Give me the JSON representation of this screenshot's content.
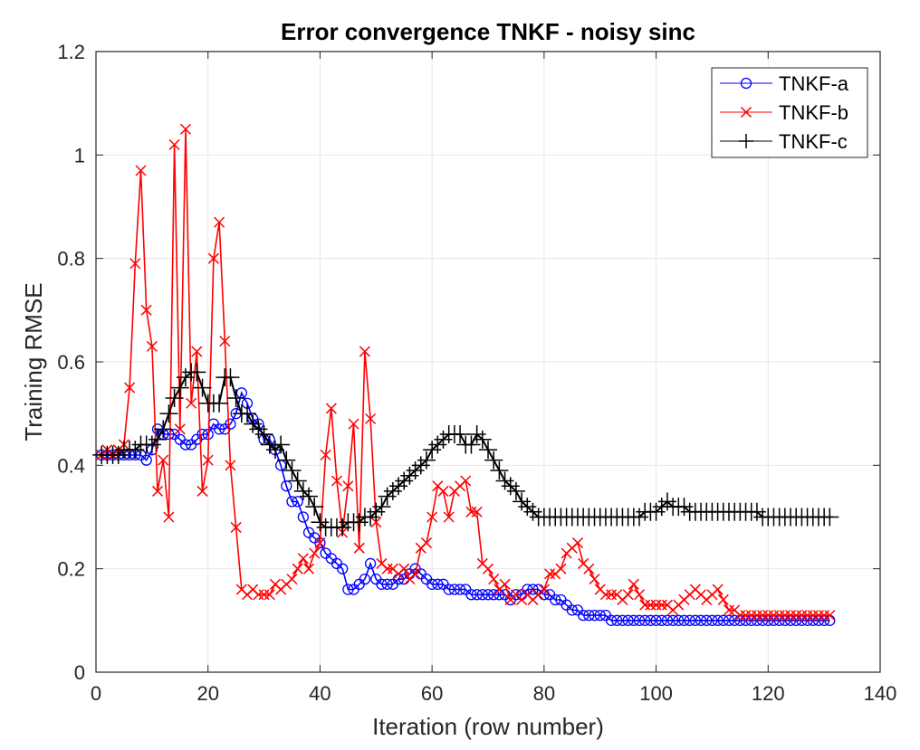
{
  "chart_data": {
    "type": "line",
    "title": "Error convergence TNKF - noisy sinc",
    "xlabel": "Iteration (row number)",
    "ylabel": "Training RMSE",
    "xlim": [
      0,
      140
    ],
    "ylim": [
      0,
      1.2
    ],
    "xticks": [
      0,
      20,
      40,
      60,
      80,
      100,
      120,
      140
    ],
    "yticks": [
      0,
      0.2,
      0.4,
      0.6,
      0.8,
      1,
      1.2
    ],
    "xtick_labels": [
      "0",
      "20",
      "40",
      "60",
      "80",
      "100",
      "120",
      "140"
    ],
    "ytick_labels": [
      "0",
      "0.2",
      "0.4",
      "0.6",
      "0.8",
      "1",
      "1.2"
    ],
    "grid": true,
    "legend": "top-right",
    "x": [
      1,
      2,
      3,
      4,
      5,
      6,
      7,
      8,
      9,
      10,
      11,
      12,
      13,
      14,
      15,
      16,
      17,
      18,
      19,
      20,
      21,
      22,
      23,
      24,
      25,
      26,
      27,
      28,
      29,
      30,
      31,
      32,
      33,
      34,
      35,
      36,
      37,
      38,
      39,
      40,
      41,
      42,
      43,
      44,
      45,
      46,
      47,
      48,
      49,
      50,
      51,
      52,
      53,
      54,
      55,
      56,
      57,
      58,
      59,
      60,
      61,
      62,
      63,
      64,
      65,
      66,
      67,
      68,
      69,
      70,
      71,
      72,
      73,
      74,
      75,
      76,
      77,
      78,
      79,
      80,
      81,
      82,
      83,
      84,
      85,
      86,
      87,
      88,
      89,
      90,
      91,
      92,
      93,
      94,
      95,
      96,
      97,
      98,
      99,
      100,
      101,
      102,
      103,
      104,
      105,
      106,
      107,
      108,
      109,
      110,
      111,
      112,
      113,
      114,
      115,
      116,
      117,
      118,
      119,
      120,
      121,
      122,
      123,
      124,
      125,
      126,
      127,
      128,
      129,
      130,
      131
    ],
    "series": [
      {
        "name": "TNKF-a",
        "color": "#0000ff",
        "marker": "circle",
        "values": [
          0.42,
          0.42,
          0.42,
          0.42,
          0.42,
          0.42,
          0.42,
          0.42,
          0.41,
          0.43,
          0.47,
          0.46,
          0.46,
          0.46,
          0.45,
          0.44,
          0.44,
          0.45,
          0.46,
          0.46,
          0.48,
          0.47,
          0.47,
          0.48,
          0.5,
          0.54,
          0.52,
          0.49,
          0.48,
          0.45,
          0.45,
          0.43,
          0.4,
          0.36,
          0.33,
          0.33,
          0.3,
          0.27,
          0.26,
          0.25,
          0.23,
          0.22,
          0.21,
          0.2,
          0.16,
          0.16,
          0.17,
          0.18,
          0.21,
          0.18,
          0.17,
          0.17,
          0.17,
          0.18,
          0.18,
          0.19,
          0.2,
          0.19,
          0.18,
          0.17,
          0.17,
          0.17,
          0.16,
          0.16,
          0.16,
          0.16,
          0.15,
          0.15,
          0.15,
          0.15,
          0.15,
          0.15,
          0.15,
          0.14,
          0.15,
          0.15,
          0.16,
          0.16,
          0.16,
          0.15,
          0.15,
          0.14,
          0.14,
          0.13,
          0.12,
          0.12,
          0.11,
          0.11,
          0.11,
          0.11,
          0.11,
          0.1,
          0.1,
          0.1,
          0.1,
          0.1,
          0.1,
          0.1,
          0.1,
          0.1,
          0.1,
          0.1,
          0.1,
          0.1,
          0.1,
          0.1,
          0.1,
          0.1,
          0.1,
          0.1,
          0.1,
          0.1,
          0.1,
          0.1,
          0.1,
          0.1,
          0.1,
          0.1,
          0.1,
          0.1,
          0.1,
          0.1,
          0.1,
          0.1,
          0.1,
          0.1,
          0.1,
          0.1,
          0.1,
          0.1,
          0.1
        ]
      },
      {
        "name": "TNKF-b",
        "color": "#ff0000",
        "marker": "x",
        "values": [
          0.42,
          0.43,
          0.42,
          0.43,
          0.44,
          0.55,
          0.79,
          0.97,
          0.7,
          0.63,
          0.35,
          0.41,
          0.3,
          1.02,
          0.47,
          1.05,
          0.52,
          0.62,
          0.35,
          0.41,
          0.8,
          0.87,
          0.64,
          0.4,
          0.28,
          0.16,
          0.15,
          0.16,
          0.15,
          0.15,
          0.15,
          0.17,
          0.16,
          0.17,
          0.18,
          0.2,
          0.22,
          0.2,
          0.23,
          0.25,
          0.42,
          0.51,
          0.37,
          0.27,
          0.36,
          0.48,
          0.24,
          0.62,
          0.49,
          0.29,
          0.21,
          0.2,
          0.2,
          0.19,
          0.2,
          0.18,
          0.19,
          0.24,
          0.25,
          0.3,
          0.36,
          0.35,
          0.3,
          0.35,
          0.36,
          0.37,
          0.31,
          0.31,
          0.21,
          0.2,
          0.18,
          0.16,
          0.17,
          0.14,
          0.15,
          0.14,
          0.15,
          0.14,
          0.15,
          0.16,
          0.19,
          0.19,
          0.2,
          0.23,
          0.24,
          0.25,
          0.21,
          0.2,
          0.18,
          0.16,
          0.15,
          0.15,
          0.15,
          0.14,
          0.15,
          0.17,
          0.15,
          0.13,
          0.13,
          0.13,
          0.13,
          0.13,
          0.12,
          0.13,
          0.14,
          0.15,
          0.16,
          0.15,
          0.14,
          0.15,
          0.16,
          0.14,
          0.12,
          0.12,
          0.11,
          0.11,
          0.11,
          0.11,
          0.11,
          0.11,
          0.11,
          0.11,
          0.11,
          0.11,
          0.11,
          0.11,
          0.11,
          0.11,
          0.11,
          0.11,
          0.11
        ]
      },
      {
        "name": "TNKF-c",
        "color": "#000000",
        "marker": "plus",
        "values": [
          0.42,
          0.42,
          0.42,
          0.42,
          0.43,
          0.43,
          0.43,
          0.44,
          0.44,
          0.44,
          0.45,
          0.47,
          0.5,
          0.53,
          0.55,
          0.57,
          0.58,
          0.58,
          0.55,
          0.52,
          0.52,
          0.52,
          0.57,
          0.57,
          0.53,
          0.5,
          0.5,
          0.48,
          0.47,
          0.46,
          0.44,
          0.43,
          0.44,
          0.41,
          0.39,
          0.37,
          0.35,
          0.34,
          0.32,
          0.29,
          0.28,
          0.28,
          0.28,
          0.28,
          0.29,
          0.29,
          0.29,
          0.3,
          0.3,
          0.31,
          0.32,
          0.34,
          0.35,
          0.36,
          0.37,
          0.38,
          0.39,
          0.4,
          0.41,
          0.43,
          0.44,
          0.45,
          0.46,
          0.46,
          0.46,
          0.44,
          0.44,
          0.46,
          0.45,
          0.43,
          0.41,
          0.39,
          0.37,
          0.36,
          0.35,
          0.33,
          0.32,
          0.31,
          0.3,
          0.3,
          0.3,
          0.3,
          0.3,
          0.3,
          0.3,
          0.3,
          0.3,
          0.3,
          0.3,
          0.3,
          0.3,
          0.3,
          0.3,
          0.3,
          0.3,
          0.3,
          0.3,
          0.31,
          0.31,
          0.31,
          0.32,
          0.33,
          0.32,
          0.32,
          0.32,
          0.31,
          0.31,
          0.31,
          0.31,
          0.31,
          0.31,
          0.31,
          0.31,
          0.31,
          0.31,
          0.31,
          0.31,
          0.31,
          0.3,
          0.3,
          0.3,
          0.3,
          0.3,
          0.3,
          0.3,
          0.3,
          0.3,
          0.3,
          0.3,
          0.3,
          0.3
        ]
      }
    ]
  }
}
